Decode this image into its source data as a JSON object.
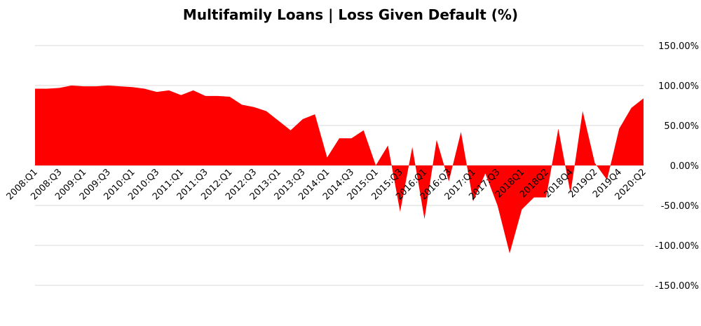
{
  "chart_data": {
    "type": "area",
    "title": "Multifamily Loans | Loss Given Default (%)",
    "categories": [
      "2008:Q1",
      null,
      "2008:Q3",
      null,
      "2009:Q1",
      null,
      "2009:Q3",
      null,
      "2010:Q1",
      null,
      "2010:Q3",
      null,
      "2011:Q1",
      null,
      "2011:Q3",
      null,
      "2012:Q1",
      null,
      "2012:Q3",
      null,
      "2013:Q1",
      null,
      "2013:Q3",
      null,
      "2014:Q1",
      null,
      "2014:Q3",
      null,
      "2015:Q1",
      null,
      "2015:Q3",
      null,
      "2016:Q1",
      null,
      "2016:Q3",
      null,
      "2017:Q1",
      null,
      "2017:Q3",
      null,
      "2018Q1",
      null,
      "2018Q2",
      null,
      "2018Q4",
      null,
      "2019Q2",
      null,
      "2019Q4",
      null,
      "2020:Q2"
    ],
    "series": [
      {
        "name": "Loss Given Default",
        "color": "#ff0000",
        "values": [
          96,
          96,
          97,
          100,
          99,
          99,
          100,
          99,
          98,
          96,
          92,
          94,
          88,
          94,
          87,
          87,
          86,
          76,
          73,
          68,
          56,
          44,
          58,
          64,
          10,
          34,
          34,
          44,
          0,
          25,
          -58,
          23,
          -67,
          32,
          -20,
          42,
          -45,
          -10,
          -50,
          -110,
          -55,
          -40,
          -40,
          46,
          -35,
          68,
          3,
          -18,
          46,
          72,
          84
        ]
      }
    ],
    "ylim": [
      -150,
      150
    ],
    "yticks": [
      {
        "value": -150,
        "label": "-150.00%"
      },
      {
        "value": -100,
        "label": "-100.00%"
      },
      {
        "value": -50,
        "label": "-50.00%"
      },
      {
        "value": 0,
        "label": "0.00%"
      },
      {
        "value": 50,
        "label": "50.00%"
      },
      {
        "value": 100,
        "label": "100.00%"
      },
      {
        "value": 150,
        "label": "150.00%"
      }
    ],
    "grid": true
  }
}
